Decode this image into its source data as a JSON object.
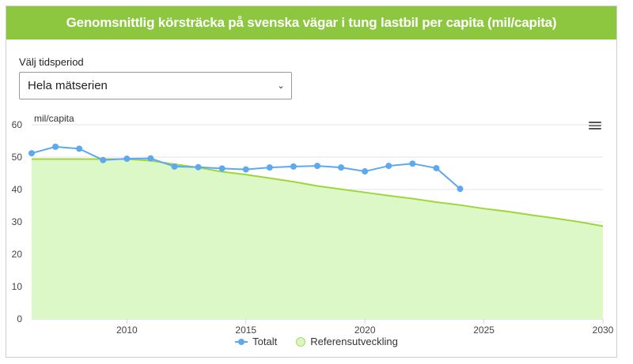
{
  "header": {
    "title": "Genomsnittlig körsträcka på svenska vägar i tung lastbil per capita (mil/capita)"
  },
  "period": {
    "label": "Välj tidsperiod",
    "selected": "Hela mätserien"
  },
  "colors": {
    "header": "#8dc63f",
    "totalt": "#5ea8f0",
    "referens_line": "#9fd63d",
    "referens_fill": "#dcf8c6"
  },
  "chart_data": {
    "type": "line",
    "ylabel": "mil/capita",
    "ylim": [
      0,
      60
    ],
    "xlim": [
      2006,
      2030
    ],
    "x_ticks": [
      2010,
      2015,
      2020,
      2025,
      2030
    ],
    "y_ticks": [
      0,
      10,
      20,
      30,
      40,
      50,
      60
    ],
    "grid": "horizontal",
    "legend_position": "bottom-center",
    "series": [
      {
        "name": "Totalt",
        "type": "line",
        "points": [
          [
            2006,
            51.2
          ],
          [
            2007,
            53.2
          ],
          [
            2008,
            52.6
          ],
          [
            2009,
            49.1
          ],
          [
            2010,
            49.5
          ],
          [
            2011,
            49.6
          ],
          [
            2012,
            47.1
          ],
          [
            2013,
            46.9
          ],
          [
            2014,
            46.5
          ],
          [
            2015,
            46.2
          ],
          [
            2016,
            46.8
          ],
          [
            2017,
            47.1
          ],
          [
            2018,
            47.3
          ],
          [
            2019,
            46.8
          ],
          [
            2020,
            45.6
          ],
          [
            2021,
            47.3
          ],
          [
            2022,
            48.0
          ],
          [
            2023,
            46.6
          ],
          [
            2024,
            40.2
          ]
        ]
      },
      {
        "name": "Referensutveckling",
        "type": "area",
        "points": [
          [
            2006,
            49.4
          ],
          [
            2010,
            49.4
          ],
          [
            2011,
            48.9
          ],
          [
            2012,
            47.8
          ],
          [
            2013,
            46.8
          ],
          [
            2014,
            45.5
          ],
          [
            2015,
            44.6
          ],
          [
            2016,
            43.5
          ],
          [
            2017,
            42.4
          ],
          [
            2018,
            41.1
          ],
          [
            2019,
            40.1
          ],
          [
            2020,
            39.1
          ],
          [
            2021,
            38.1
          ],
          [
            2022,
            37.2
          ],
          [
            2023,
            36.1
          ],
          [
            2024,
            35.2
          ],
          [
            2025,
            34.1
          ],
          [
            2026,
            33.2
          ],
          [
            2027,
            32.1
          ],
          [
            2028,
            31.1
          ],
          [
            2029,
            30.0
          ],
          [
            2030,
            28.7
          ]
        ]
      }
    ]
  },
  "legend": {
    "items": [
      "Totalt",
      "Referensutveckling"
    ]
  },
  "menu": {
    "icon": "hamburger-menu-icon"
  }
}
